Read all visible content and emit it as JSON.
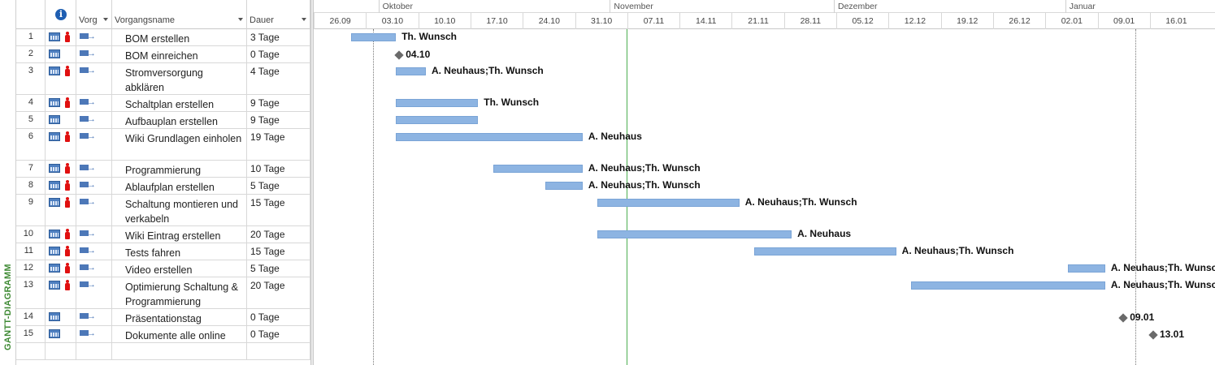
{
  "view": {
    "label": "GANTT-DIAGRAMM"
  },
  "columns": {
    "info": "i",
    "mode": "Vorg",
    "name": "Vorgangsname",
    "duration": "Dauer"
  },
  "timescale": {
    "months": [
      "Oktober",
      "November",
      "Dezember",
      "Januar"
    ],
    "weeks": [
      "26.09",
      "03.10",
      "10.10",
      "17.10",
      "24.10",
      "31.10",
      "07.11",
      "14.11",
      "21.11",
      "28.11",
      "05.12",
      "12.12",
      "19.12",
      "26.12",
      "02.01",
      "09.01",
      "16.01"
    ]
  },
  "tasks": [
    {
      "id": "1",
      "name": "BOM erstellen",
      "duration": "3 Tage",
      "resource": true,
      "label": "Th. Wunsch",
      "start": "2016-09-28",
      "end": "2016-10-03"
    },
    {
      "id": "2",
      "name": "BOM einreichen",
      "duration": "0 Tage",
      "resource": false,
      "milestone": true,
      "label": "04.10",
      "date": "2016-10-04"
    },
    {
      "id": "3",
      "name": "Stromversorgung abklären",
      "duration": "4 Tage",
      "resource": true,
      "label": "A. Neuhaus;Th. Wunsch",
      "start": "2016-10-04",
      "end": "2016-10-07"
    },
    {
      "id": "4",
      "name": "Schaltplan erstellen",
      "duration": "9 Tage",
      "resource": true,
      "label": "Th. Wunsch",
      "start": "2016-10-04",
      "end": "2016-10-14"
    },
    {
      "id": "5",
      "name": "Aufbauplan erstellen",
      "duration": "9 Tage",
      "resource": false,
      "label": "",
      "start": "2016-10-04",
      "end": "2016-10-14"
    },
    {
      "id": "6",
      "name": "Wiki Grundlagen einholen",
      "duration": "19 Tage",
      "resource": true,
      "label": "A. Neuhaus",
      "start": "2016-10-04",
      "end": "2016-10-28"
    },
    {
      "id": "7",
      "name": "Programmierung",
      "duration": "10 Tage",
      "resource": true,
      "label": "A. Neuhaus;Th. Wunsch",
      "start": "2016-10-17",
      "end": "2016-10-28"
    },
    {
      "id": "8",
      "name": "Ablaufplan erstellen",
      "duration": "5 Tage",
      "resource": true,
      "label": "A. Neuhaus;Th. Wunsch",
      "start": "2016-10-24",
      "end": "2016-10-28"
    },
    {
      "id": "9",
      "name": "Schaltung montieren und verkabeln",
      "duration": "15 Tage",
      "resource": true,
      "label": "A. Neuhaus;Th. Wunsch",
      "start": "2016-10-31",
      "end": "2016-11-18"
    },
    {
      "id": "10",
      "name": "Wiki Eintrag erstellen",
      "duration": "20 Tage",
      "resource": true,
      "label": "A. Neuhaus",
      "start": "2016-10-31",
      "end": "2016-11-25"
    },
    {
      "id": "11",
      "name": "Tests fahren",
      "duration": "15 Tage",
      "resource": true,
      "label": "A. Neuhaus;Th. Wunsch",
      "start": "2016-11-21",
      "end": "2016-12-09"
    },
    {
      "id": "12",
      "name": "Video erstellen",
      "duration": "5 Tage",
      "resource": true,
      "label": "A. Neuhaus;Th. Wunsch",
      "start": "2017-01-02",
      "end": "2017-01-06"
    },
    {
      "id": "13",
      "name": "Optimierung Schaltung & Programmierung",
      "duration": "20 Tage",
      "resource": true,
      "label": "A. Neuhaus;Th. Wunsch",
      "start": "2016-12-12",
      "end": "2017-01-06"
    },
    {
      "id": "14",
      "name": "Präsentationstag",
      "duration": "0 Tage",
      "resource": false,
      "milestone": true,
      "label": "09.01",
      "date": "2017-01-09"
    },
    {
      "id": "15",
      "name": "Dokumente alle online",
      "duration": "0 Tage",
      "resource": false,
      "milestone": true,
      "label": "13.01",
      "date": "2017-01-13"
    }
  ],
  "colors": {
    "bar": "#8db4e2",
    "today_line": "#4caf50",
    "view_label": "#3f8a34",
    "resource_icon": "#e01010"
  }
}
